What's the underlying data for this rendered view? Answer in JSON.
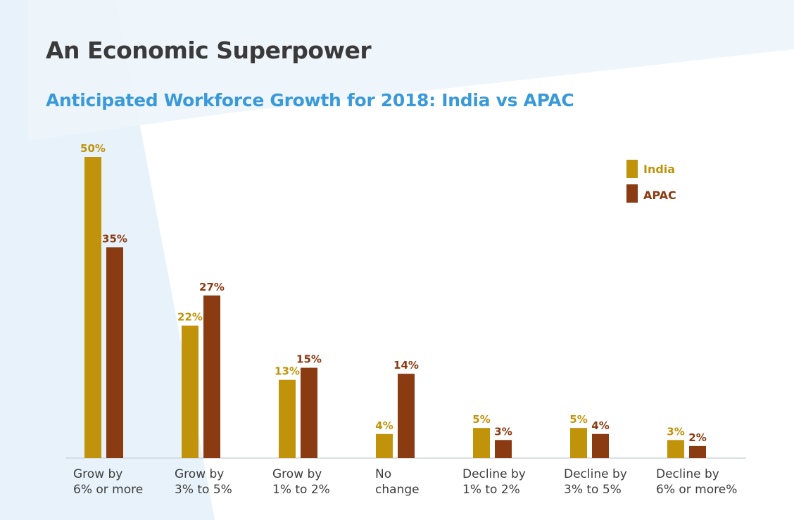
{
  "title": "An Economic Superpower",
  "colors": {
    "india": "#c0930a",
    "apac": "#8a3b12",
    "subtitle": "#3a9ad9",
    "title": "#3a3a3a",
    "axis": "#cfd6dc",
    "category_text": "#3d3d3d",
    "background_accent": "#e8f2fa"
  },
  "chart_data": {
    "type": "bar",
    "title": "Anticipated Workforce Growth for 2018: India vs APAC",
    "xlabel": "",
    "ylabel": "",
    "ylim": [
      0,
      50
    ],
    "grid": false,
    "legend_position": "top-right",
    "categories": [
      [
        "Grow by",
        "6% or more"
      ],
      [
        "Grow by",
        "3% to 5%"
      ],
      [
        "Grow by",
        "1% to 2%"
      ],
      [
        "No",
        "change"
      ],
      [
        "Decline by",
        "1% to 2%"
      ],
      [
        "Decline by",
        "3% to 5%"
      ],
      [
        "Decline by",
        "6% or more%"
      ]
    ],
    "series": [
      {
        "name": "India",
        "values": [
          50,
          22,
          13,
          4,
          5,
          5,
          3
        ],
        "labels": [
          "50%",
          "22%",
          "13%",
          "4%",
          "5%",
          "5%",
          "3%"
        ]
      },
      {
        "name": "APAC",
        "values": [
          35,
          27,
          15,
          14,
          3,
          4,
          2
        ],
        "labels": [
          "35%",
          "27%",
          "15%",
          "14%",
          "3%",
          "4%",
          "2%"
        ]
      }
    ]
  }
}
